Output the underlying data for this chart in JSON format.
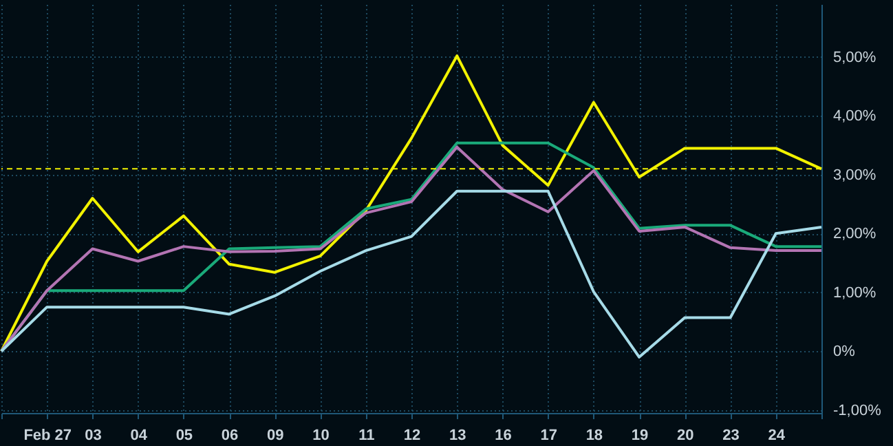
{
  "chart_data": {
    "type": "line",
    "categories": [
      null,
      "Feb 27",
      "03",
      "04",
      "05",
      "06",
      "09",
      "10",
      "11",
      "12",
      "13",
      "16",
      "17",
      "18",
      "19",
      "20",
      "23",
      "24",
      null
    ],
    "series": [
      {
        "color": "#f2f200",
        "values": [
          0,
          1.53,
          2.6,
          1.69,
          2.3,
          1.48,
          1.34,
          1.62,
          2.39,
          3.62,
          5.02,
          3.5,
          2.82,
          4.23,
          2.96,
          3.45,
          3.45,
          3.45,
          3.1
        ]
      },
      {
        "color": "#1aaa7a",
        "values": [
          0,
          1.03,
          1.03,
          1.03,
          1.03,
          1.74,
          1.76,
          1.78,
          2.42,
          2.58,
          3.54,
          3.54,
          3.54,
          3.12,
          2.09,
          2.14,
          2.14,
          1.78,
          1.78
        ]
      },
      {
        "color": "#b374b3",
        "values": [
          0,
          1.03,
          1.74,
          1.53,
          1.78,
          1.69,
          1.7,
          1.74,
          2.35,
          2.54,
          3.47,
          2.75,
          2.37,
          3.07,
          2.04,
          2.11,
          1.76,
          1.71,
          1.71
        ]
      },
      {
        "color": "#a6dbe8",
        "values": [
          0,
          0.75,
          0.75,
          0.75,
          0.75,
          0.63,
          0.94,
          1.36,
          1.71,
          1.95,
          2.72,
          2.72,
          2.72,
          1.01,
          -0.1,
          0.57,
          0.57,
          2.0,
          2.11
        ]
      }
    ],
    "ylim": [
      -1.05,
      5.9
    ],
    "yticks": [
      {
        "value": -1,
        "label": "-1,00%"
      },
      {
        "value": 0,
        "label": "0%"
      },
      {
        "value": 1,
        "label": "1,00%"
      },
      {
        "value": 2,
        "label": "2,00%"
      },
      {
        "value": 3,
        "label": "3,00%"
      },
      {
        "value": 4,
        "label": "4,00%"
      },
      {
        "value": 5,
        "label": "5,00%"
      }
    ],
    "ref_lines": [
      {
        "axis": "y",
        "value": 3.1,
        "color": "#f2f200",
        "line_style": "dashed"
      }
    ],
    "grid": true
  }
}
